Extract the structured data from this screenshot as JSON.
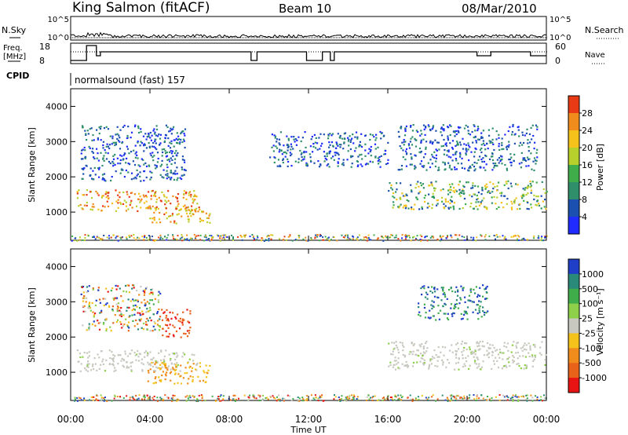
{
  "header": {
    "station": "King Salmon (fitACF)",
    "beam": "Beam 10",
    "date": "08/Mar/2010"
  },
  "status_panel": {
    "nsky_label": "N.Sky",
    "nsearch_label": "N.Search",
    "freq_label": "Freq.",
    "freq_unit": "[MHz]",
    "nave_label": "Nave",
    "cpid_label": "CPID",
    "noise_ticks": [
      "10^5",
      "10^0"
    ],
    "freq_ticks": [
      "18",
      "8"
    ],
    "nave_ticks": [
      "60",
      "0"
    ],
    "cpid_text": "normalsound (fast) 157"
  },
  "chart_data": [
    {
      "type": "heatmap",
      "panel": "power",
      "ylabel": "Slant Range [km]",
      "xlabel": "Time UT",
      "x_ticks": [
        "00:00",
        "04:00",
        "08:00",
        "12:00",
        "16:00",
        "20:00",
        "00:00"
      ],
      "x_range_hours": [
        0,
        24
      ],
      "y_ticks": [
        1000,
        2000,
        3000,
        4000
      ],
      "y_range_km": [
        200,
        4500
      ],
      "colorbar_label": "Power [dB]",
      "colorbar_ticks": [
        4,
        8,
        12,
        16,
        20,
        24,
        28
      ],
      "colorbar_colors": [
        "#1f2bff",
        "#1b4fb0",
        "#2f8f6a",
        "#3fae4a",
        "#b8d02c",
        "#f5c21b",
        "#f08c1c",
        "#e83a14"
      ],
      "scatter_regions": [
        {
          "t0": 0.3,
          "t1": 6.5,
          "r0": 1050,
          "r1": 1650,
          "level": "high"
        },
        {
          "t0": 3.8,
          "t1": 7.0,
          "r0": 700,
          "r1": 1200,
          "level": "high"
        },
        {
          "t0": 0.5,
          "t1": 5.8,
          "r0": 1900,
          "r1": 3500,
          "level": "low"
        },
        {
          "t0": 10.0,
          "t1": 16.0,
          "r0": 2300,
          "r1": 3300,
          "level": "low"
        },
        {
          "t0": 16.0,
          "t1": 24.0,
          "r0": 1100,
          "r1": 1900,
          "level": "mid"
        },
        {
          "t0": 16.5,
          "t1": 23.5,
          "r0": 2200,
          "r1": 3500,
          "level": "low"
        }
      ]
    },
    {
      "type": "heatmap",
      "panel": "velocity",
      "ylabel": "Slant Range [km]",
      "xlabel": "Time UT",
      "x_ticks": [
        "00:00",
        "04:00",
        "08:00",
        "12:00",
        "16:00",
        "20:00",
        "00:00"
      ],
      "x_range_hours": [
        0,
        24
      ],
      "y_ticks": [
        1000,
        2000,
        3000,
        4000
      ],
      "y_range_km": [
        200,
        4500
      ],
      "colorbar_label": "Velocity [m s⁻¹]",
      "colorbar_ticks": [
        1000,
        500,
        100,
        25,
        -25,
        -100,
        -500,
        -1000
      ],
      "colorbar_colors": [
        "#1f3fc8",
        "#2a8a7a",
        "#3fae4a",
        "#8ed04a",
        "#c8c8c0",
        "#f5c21b",
        "#f08c1c",
        "#e8621a",
        "#e81414"
      ],
      "scatter_regions": [
        {
          "t0": 0.3,
          "t1": 6.5,
          "r0": 1050,
          "r1": 1650,
          "level": "ground"
        },
        {
          "t0": 3.8,
          "t1": 7.0,
          "r0": 700,
          "r1": 1300,
          "level": "orange"
        },
        {
          "t0": 4.5,
          "t1": 6.0,
          "r0": 2000,
          "r1": 2800,
          "level": "red"
        },
        {
          "t0": 0.5,
          "t1": 4.5,
          "r0": 2200,
          "r1": 3500,
          "level": "mixed"
        },
        {
          "t0": 16.0,
          "t1": 24.0,
          "r0": 1100,
          "r1": 1900,
          "level": "ground"
        },
        {
          "t0": 17.5,
          "t1": 21.0,
          "r0": 2500,
          "r1": 3500,
          "level": "blue"
        }
      ]
    }
  ]
}
